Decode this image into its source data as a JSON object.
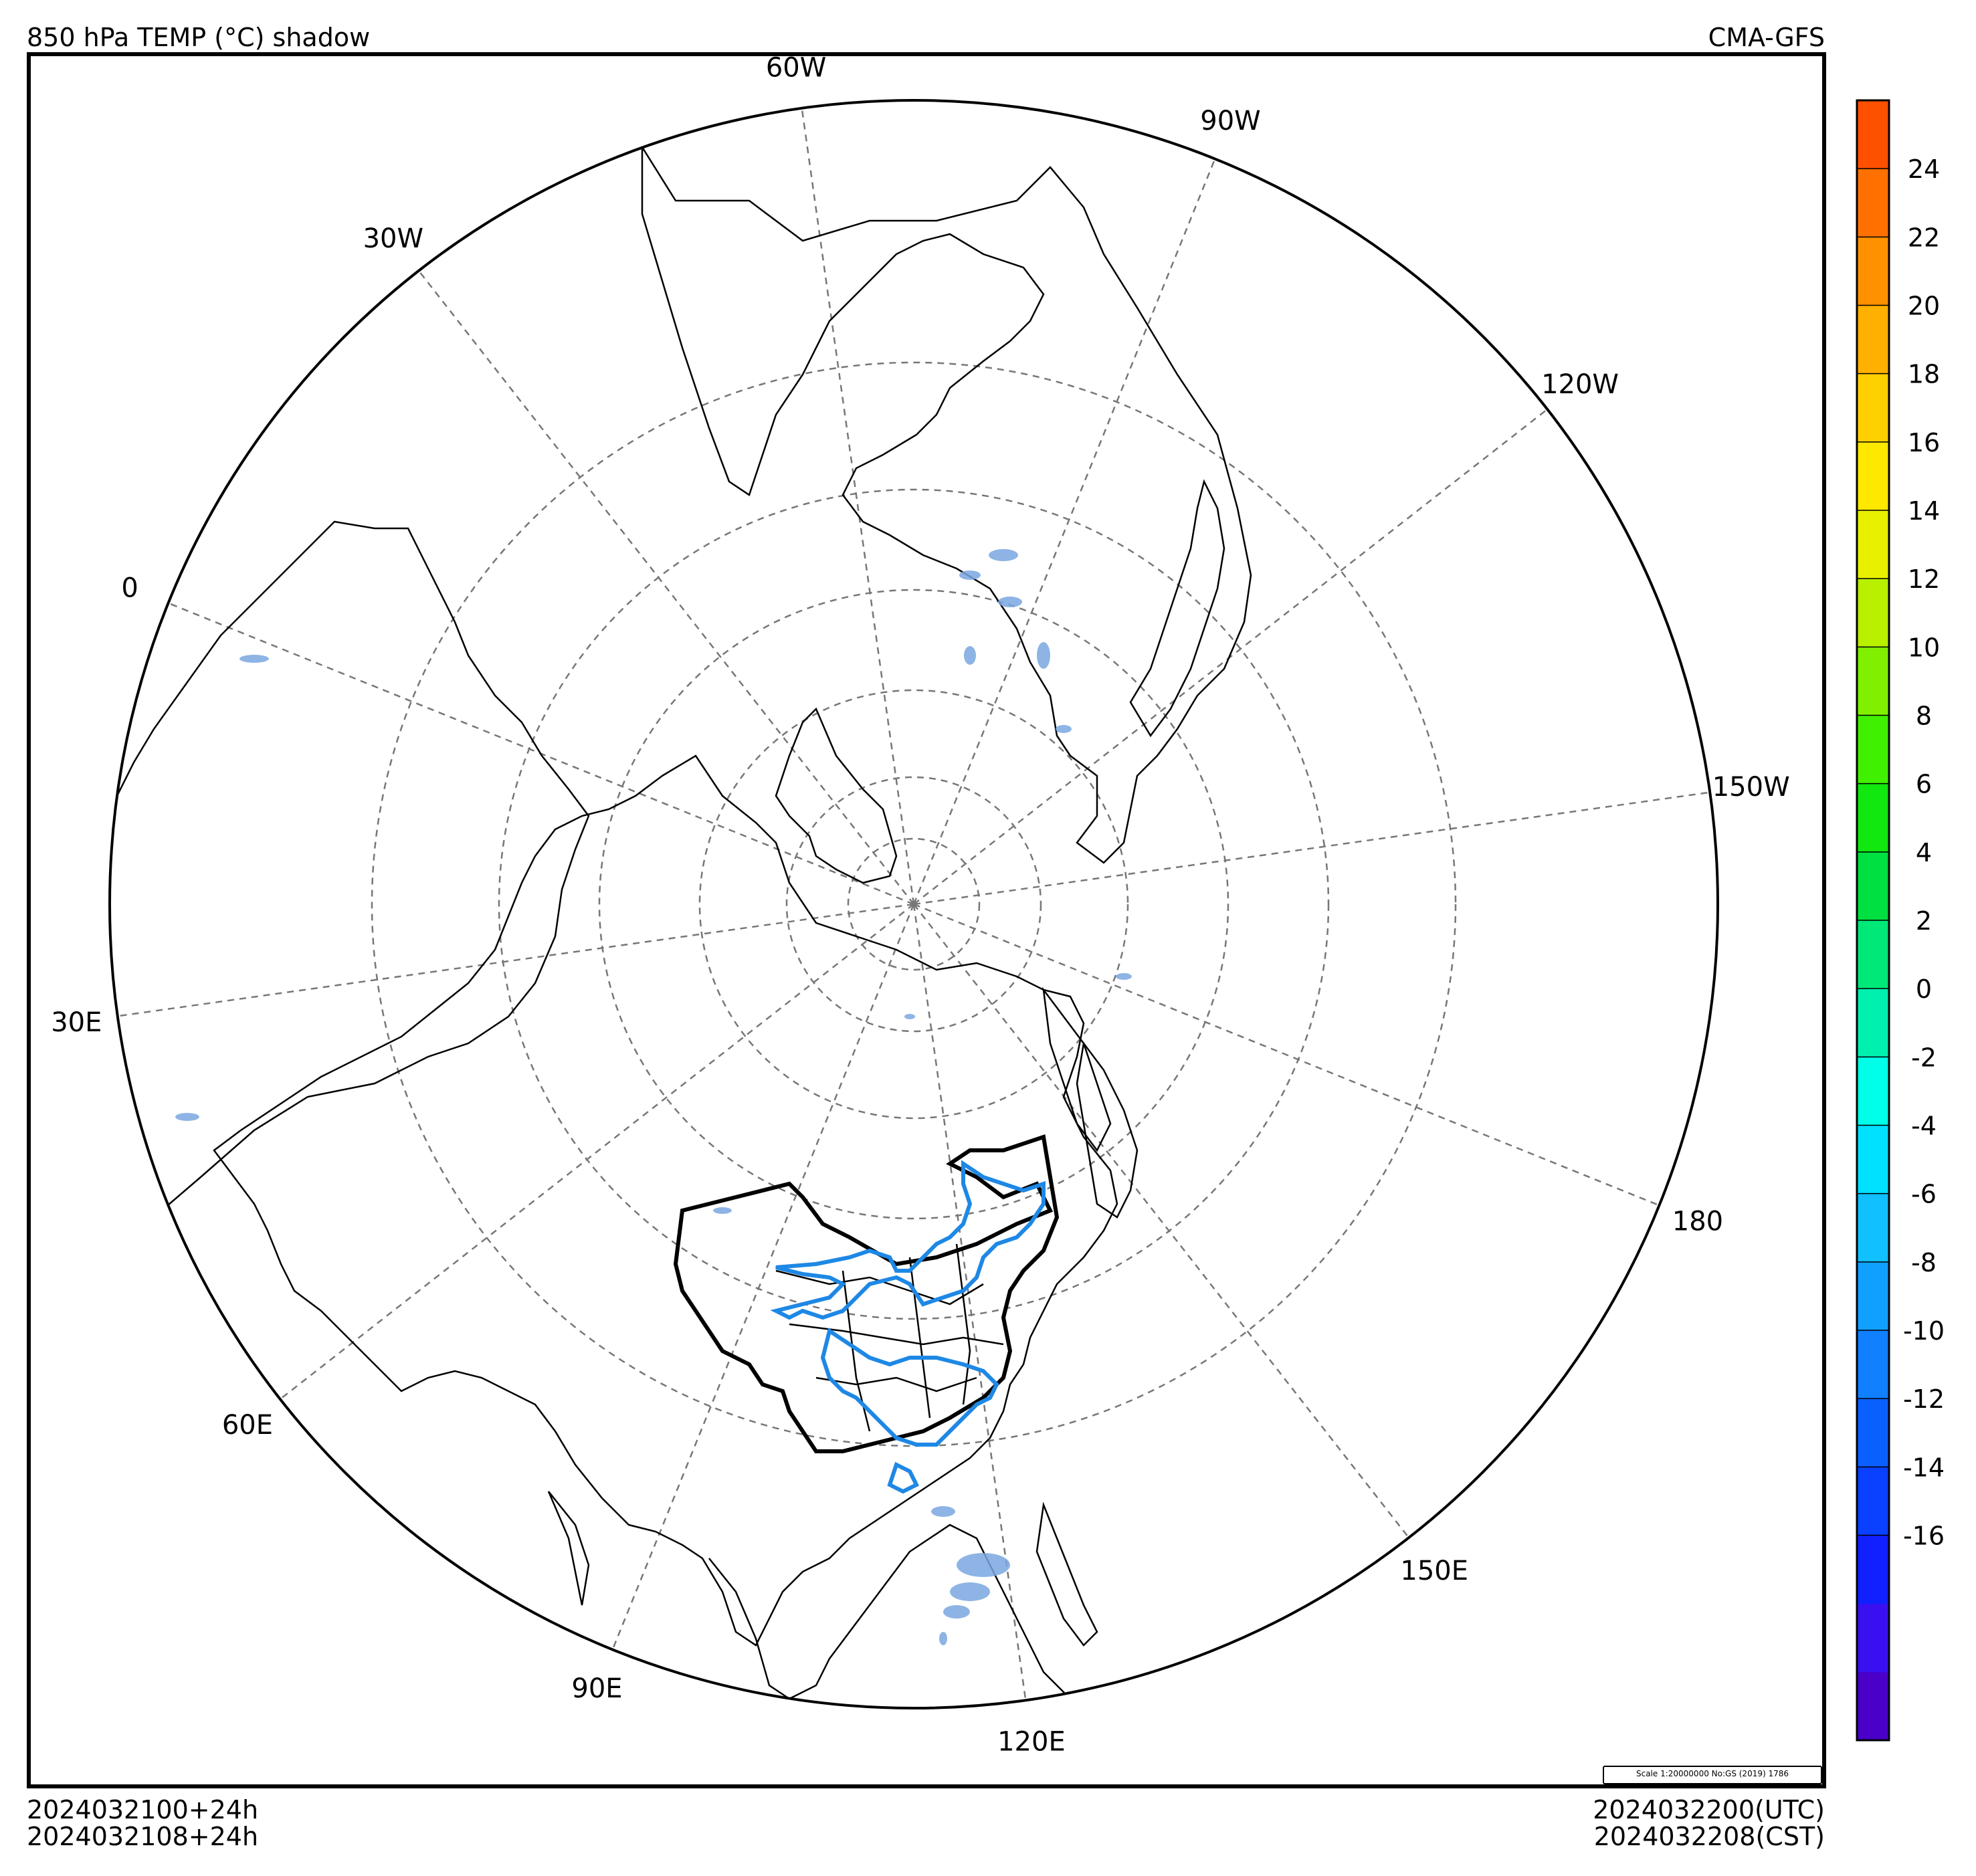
{
  "header": {
    "title": "850 hPa TEMP (°C) shadow",
    "model": "CMA-GFS"
  },
  "footer": {
    "init_run": "2024032100+24h",
    "init_run_cst": "2024032108+24h",
    "valid_utc": "2024032200(UTC)",
    "valid_cst": "2024032208(CST)"
  },
  "scale_note": "Scale 1:20000000 No:GS (2019) 1786",
  "map": {
    "projection": "north polar stereographic",
    "meridian_labels": [
      {
        "lon": "60W",
        "key": "60W"
      },
      {
        "lon": "90W",
        "key": "90W"
      },
      {
        "lon": "30W",
        "key": "30W"
      },
      {
        "lon": "120W",
        "key": "120W"
      },
      {
        "lon": "0",
        "key": "0"
      },
      {
        "lon": "150W",
        "key": "150W"
      },
      {
        "lon": "30E",
        "key": "30E"
      },
      {
        "lon": "180",
        "key": "180"
      },
      {
        "lon": "60E",
        "key": "60E"
      },
      {
        "lon": "150E",
        "key": "150E"
      },
      {
        "lon": "90E",
        "key": "90E"
      },
      {
        "lon": "120E",
        "key": "120E"
      }
    ],
    "highlight_color": "#1e88e5",
    "shading_color": "#7aa7e0"
  },
  "colorbar": {
    "ticks": [
      "24",
      "22",
      "20",
      "18",
      "16",
      "14",
      "12",
      "10",
      "8",
      "6",
      "4",
      "2",
      "0",
      "-2",
      "-4",
      "-6",
      "-8",
      "-10",
      "-12",
      "-14",
      "-16"
    ],
    "colors": [
      "#4a00c8",
      "#3a10f0",
      "#1020ff",
      "#0a40ff",
      "#0a60ff",
      "#1080ff",
      "#10a0ff",
      "#10c0ff",
      "#00e0ff",
      "#00ffe8",
      "#00f0b0",
      "#00e878",
      "#00e040",
      "#10e810",
      "#40f000",
      "#80f000",
      "#b8f000",
      "#e8f000",
      "#ffe800",
      "#ffd000",
      "#ffb000",
      "#ff9000",
      "#ff7000",
      "#ff5000"
    ]
  }
}
